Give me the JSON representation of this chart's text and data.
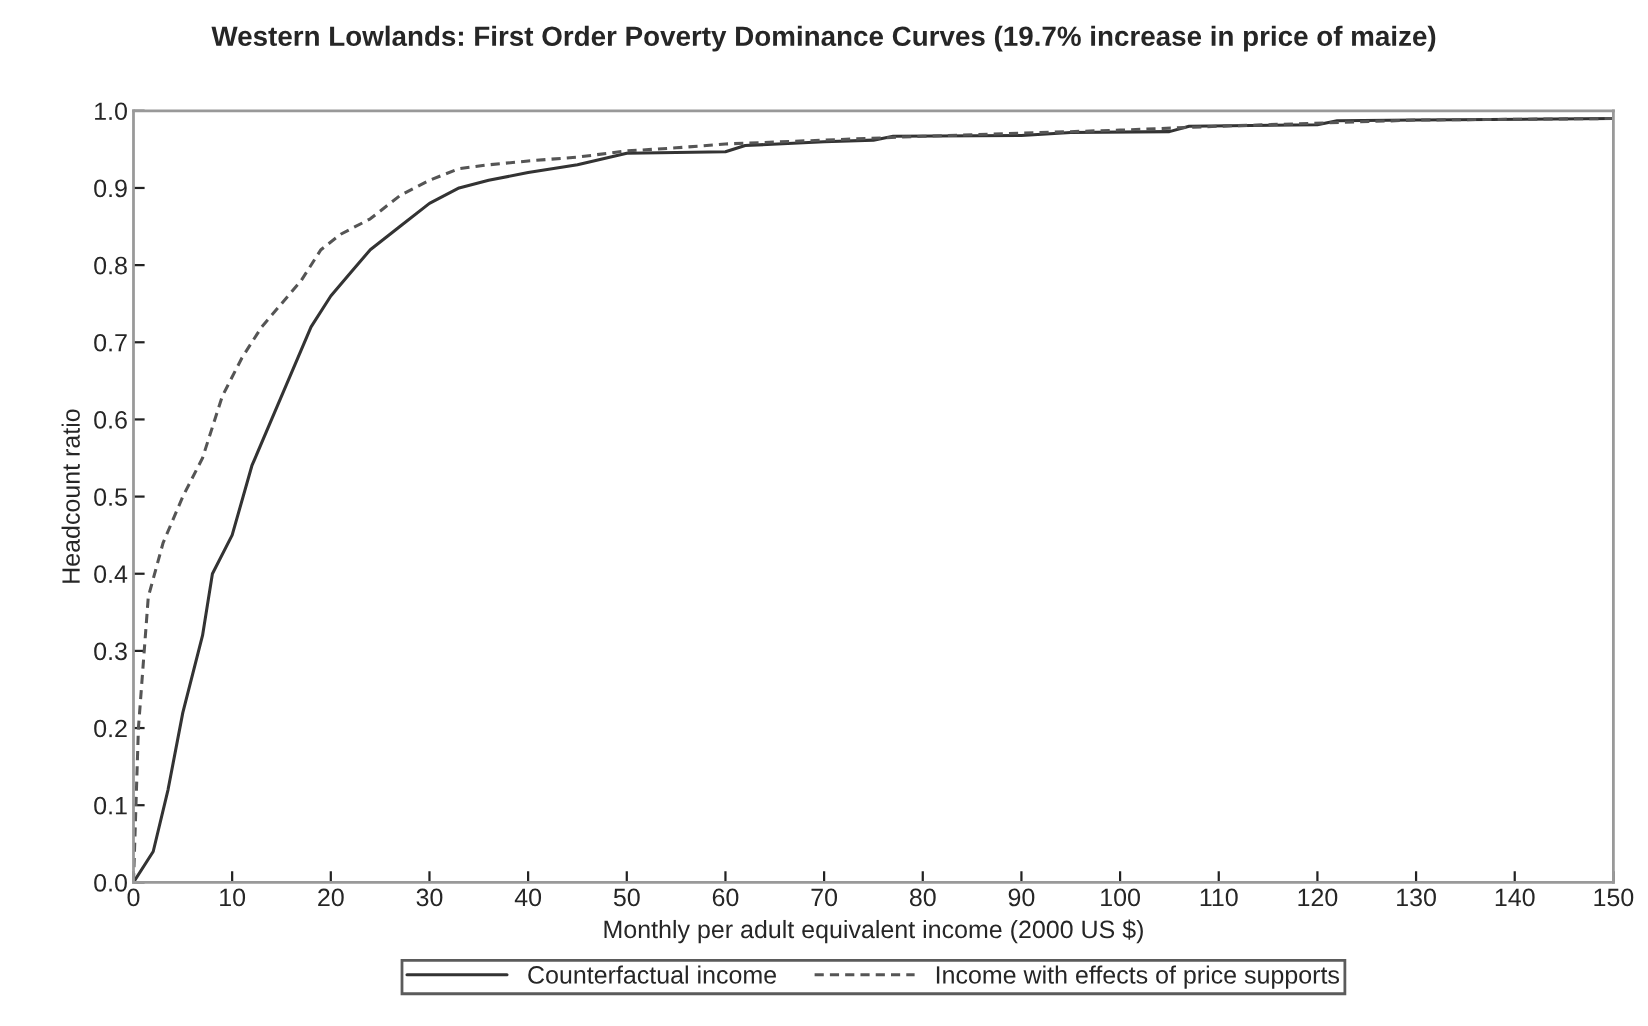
{
  "chart_data": {
    "type": "line",
    "title": "Western Lowlands: First Order Poverty Dominance Curves (19.7% increase in price of maize)",
    "xlabel": "Monthly per adult equivalent income (2000 US $)",
    "ylabel": "Headcount ratio",
    "xlim": [
      0,
      150
    ],
    "ylim": [
      0,
      1.0
    ],
    "xticks": [
      0,
      10,
      20,
      30,
      40,
      50,
      60,
      70,
      80,
      90,
      100,
      110,
      120,
      130,
      140,
      150
    ],
    "yticks": [
      {
        "value": 0,
        "label": "0.0"
      },
      0.1,
      0.2,
      0.3,
      0.4,
      0.5,
      0.6,
      0.7,
      0.8,
      0.9,
      {
        "value": 1.0,
        "label": "1.0"
      }
    ],
    "grid": false,
    "legend": "bottom",
    "marker": "none",
    "series": [
      {
        "name": "Counterfactual income",
        "color": "#333333",
        "line_style": "solid",
        "x": [
          0,
          2,
          3.5,
          5,
          7,
          8,
          10,
          12,
          14,
          16,
          18,
          20,
          22,
          24,
          27,
          30,
          33,
          36,
          40,
          45,
          50,
          60,
          62,
          70,
          75,
          77,
          90,
          95,
          105,
          107,
          120,
          122,
          130,
          150
        ],
        "values": [
          0,
          0.04,
          0.12,
          0.22,
          0.32,
          0.4,
          0.45,
          0.54,
          0.6,
          0.66,
          0.72,
          0.76,
          0.79,
          0.82,
          0.85,
          0.88,
          0.9,
          0.91,
          0.92,
          0.93,
          0.945,
          0.947,
          0.955,
          0.96,
          0.962,
          0.967,
          0.968,
          0.972,
          0.973,
          0.98,
          0.982,
          0.987,
          0.988,
          0.99
        ]
      },
      {
        "name": "Income with effects of price supports",
        "color": "#555555",
        "line_style": "dashed",
        "x": [
          0,
          0.5,
          1.5,
          3,
          5,
          7,
          9,
          11,
          13,
          15,
          17,
          19,
          21,
          24,
          27,
          30,
          33,
          36,
          40,
          45,
          50,
          55,
          60,
          70,
          80,
          100,
          110,
          130,
          150
        ],
        "values": [
          0,
          0.2,
          0.37,
          0.44,
          0.5,
          0.55,
          0.63,
          0.68,
          0.72,
          0.75,
          0.78,
          0.82,
          0.84,
          0.86,
          0.89,
          0.91,
          0.925,
          0.93,
          0.935,
          0.94,
          0.948,
          0.952,
          0.957,
          0.962,
          0.967,
          0.975,
          0.98,
          0.988,
          0.99
        ]
      }
    ]
  }
}
